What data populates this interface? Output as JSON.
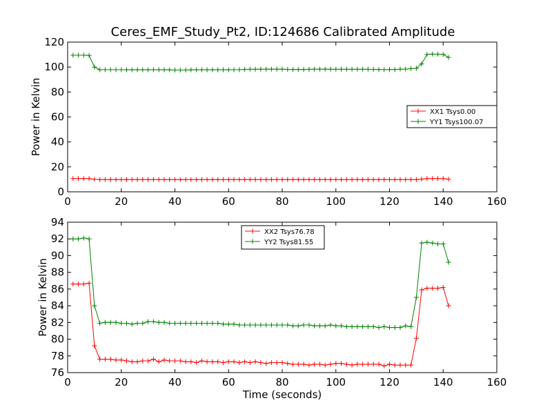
{
  "title": "Ceres_EMF_Study_Pt2, ID:124686 Calibrated Amplitude",
  "chart_data": [
    {
      "type": "line",
      "ylabel": "Power in Kelvin",
      "xlabel": "",
      "xlim": [
        0,
        160
      ],
      "ylim": [
        0,
        120
      ],
      "xticks": [
        "0",
        "20",
        "40",
        "60",
        "80",
        "100",
        "120",
        "140",
        "160"
      ],
      "yticks": [
        "0",
        "20",
        "40",
        "60",
        "80",
        "100",
        "120"
      ],
      "legend_position": "center-right",
      "series": [
        {
          "name": "XX1 Tsys0.00",
          "color": "#ff0000",
          "marker": "plus",
          "x": [
            2,
            4,
            6,
            8,
            10,
            12,
            14,
            16,
            18,
            20,
            22,
            24,
            26,
            28,
            30,
            32,
            34,
            36,
            38,
            40,
            42,
            44,
            46,
            48,
            50,
            52,
            54,
            56,
            58,
            60,
            62,
            64,
            66,
            68,
            70,
            72,
            74,
            76,
            78,
            80,
            82,
            84,
            86,
            88,
            90,
            92,
            94,
            96,
            98,
            100,
            102,
            104,
            106,
            108,
            110,
            112,
            114,
            116,
            118,
            120,
            122,
            124,
            126,
            128,
            130,
            132,
            134,
            136,
            138,
            140,
            142
          ],
          "y": [
            10.7,
            10.7,
            10.7,
            10.7,
            10.0,
            9.8,
            9.8,
            9.8,
            9.8,
            9.8,
            9.8,
            9.8,
            9.8,
            9.8,
            9.8,
            9.8,
            9.8,
            9.8,
            9.8,
            9.8,
            9.8,
            9.8,
            9.8,
            9.8,
            9.8,
            9.8,
            9.8,
            9.8,
            9.8,
            9.8,
            9.8,
            9.8,
            9.8,
            9.8,
            9.8,
            9.8,
            9.8,
            9.8,
            9.8,
            9.8,
            9.8,
            9.8,
            9.8,
            9.8,
            9.8,
            9.8,
            9.8,
            9.8,
            9.8,
            9.8,
            9.8,
            9.8,
            9.8,
            9.8,
            9.8,
            9.8,
            9.8,
            9.8,
            9.8,
            9.8,
            9.8,
            9.8,
            9.8,
            9.8,
            9.8,
            10.2,
            10.7,
            10.7,
            10.7,
            10.7,
            10.1
          ]
        },
        {
          "name": "YY1 Tsys100.07",
          "color": "#008000",
          "marker": "plus",
          "x": [
            2,
            4,
            6,
            8,
            10,
            12,
            14,
            16,
            18,
            20,
            22,
            24,
            26,
            28,
            30,
            32,
            34,
            36,
            38,
            40,
            42,
            44,
            46,
            48,
            50,
            52,
            54,
            56,
            58,
            60,
            62,
            64,
            66,
            68,
            70,
            72,
            74,
            76,
            78,
            80,
            82,
            84,
            86,
            88,
            90,
            92,
            94,
            96,
            98,
            100,
            102,
            104,
            106,
            108,
            110,
            112,
            114,
            116,
            118,
            120,
            122,
            124,
            126,
            128,
            130,
            132,
            134,
            136,
            138,
            140,
            142
          ],
          "y": [
            109.5,
            109.5,
            109.5,
            109.3,
            100.0,
            97.8,
            97.9,
            97.9,
            97.9,
            97.9,
            97.8,
            97.8,
            97.8,
            97.8,
            97.8,
            97.9,
            97.8,
            97.8,
            97.7,
            97.6,
            97.6,
            97.6,
            97.7,
            97.8,
            97.8,
            97.8,
            97.8,
            97.8,
            97.8,
            97.8,
            97.9,
            97.9,
            98.1,
            98.2,
            98.2,
            98.3,
            98.3,
            98.3,
            98.3,
            98.3,
            98.1,
            98.0,
            98.1,
            98.0,
            98.2,
            98.3,
            98.3,
            98.3,
            98.3,
            98.2,
            98.2,
            98.2,
            98.2,
            98.2,
            98.2,
            98.2,
            98.1,
            98.0,
            97.9,
            98.0,
            98.0,
            98.3,
            98.4,
            98.7,
            99.0,
            102.5,
            110.2,
            110.4,
            110.3,
            110.1,
            107.8
          ]
        }
      ]
    },
    {
      "type": "line",
      "ylabel": "Power in Kelvin",
      "xlabel": "Time (seconds)",
      "xlim": [
        0,
        160
      ],
      "ylim": [
        76,
        94
      ],
      "xticks": [
        "0",
        "20",
        "40",
        "60",
        "80",
        "100",
        "120",
        "140",
        "160"
      ],
      "yticks": [
        "76",
        "78",
        "80",
        "82",
        "84",
        "86",
        "88",
        "90",
        "92",
        "94"
      ],
      "legend_position": "top-center",
      "series": [
        {
          "name": "XX2 Tsys76.78",
          "color": "#ff0000",
          "marker": "plus",
          "x": [
            2,
            4,
            6,
            8,
            10,
            12,
            14,
            16,
            18,
            20,
            22,
            24,
            26,
            28,
            30,
            32,
            34,
            36,
            38,
            40,
            42,
            44,
            46,
            48,
            50,
            52,
            54,
            56,
            58,
            60,
            62,
            64,
            66,
            68,
            70,
            72,
            74,
            76,
            78,
            80,
            82,
            84,
            86,
            88,
            90,
            92,
            94,
            96,
            98,
            100,
            102,
            104,
            106,
            108,
            110,
            112,
            114,
            116,
            118,
            120,
            122,
            124,
            126,
            128,
            130,
            132,
            134,
            136,
            138,
            140,
            142
          ],
          "y": [
            86.6,
            86.6,
            86.6,
            86.7,
            79.2,
            77.6,
            77.6,
            77.6,
            77.5,
            77.5,
            77.4,
            77.3,
            77.3,
            77.4,
            77.4,
            77.6,
            77.3,
            77.5,
            77.4,
            77.4,
            77.4,
            77.3,
            77.3,
            77.2,
            77.4,
            77.3,
            77.3,
            77.3,
            77.2,
            77.3,
            77.3,
            77.2,
            77.3,
            77.2,
            77.3,
            77.2,
            77.1,
            77.2,
            77.2,
            77.2,
            77.1,
            77.0,
            77.0,
            77.0,
            76.9,
            77.0,
            77.0,
            76.9,
            77.0,
            77.1,
            77.1,
            77.0,
            76.9,
            77.0,
            77.0,
            77.0,
            77.0,
            77.0,
            76.8,
            77.0,
            76.9,
            76.9,
            76.9,
            76.9,
            80.1,
            85.9,
            86.1,
            86.1,
            86.1,
            86.2,
            84.0
          ]
        },
        {
          "name": "YY2 Tsys81.55",
          "color": "#008000",
          "marker": "plus",
          "x": [
            2,
            4,
            6,
            8,
            10,
            12,
            14,
            16,
            18,
            20,
            22,
            24,
            26,
            28,
            30,
            32,
            34,
            36,
            38,
            40,
            42,
            44,
            46,
            48,
            50,
            52,
            54,
            56,
            58,
            60,
            62,
            64,
            66,
            68,
            70,
            72,
            74,
            76,
            78,
            80,
            82,
            84,
            86,
            88,
            90,
            92,
            94,
            96,
            98,
            100,
            102,
            104,
            106,
            108,
            110,
            112,
            114,
            116,
            118,
            120,
            122,
            124,
            126,
            128,
            130,
            132,
            134,
            136,
            138,
            140,
            142
          ],
          "y": [
            92.0,
            92.0,
            92.1,
            92.0,
            84.0,
            81.9,
            82.0,
            82.0,
            82.0,
            81.9,
            81.9,
            81.8,
            81.9,
            81.9,
            82.1,
            82.1,
            82.0,
            82.0,
            81.9,
            81.9,
            81.9,
            81.9,
            81.9,
            81.9,
            81.9,
            81.9,
            81.9,
            81.9,
            81.8,
            81.8,
            81.8,
            81.7,
            81.7,
            81.7,
            81.7,
            81.7,
            81.7,
            81.7,
            81.7,
            81.7,
            81.7,
            81.6,
            81.6,
            81.7,
            81.7,
            81.6,
            81.6,
            81.6,
            81.7,
            81.6,
            81.6,
            81.5,
            81.5,
            81.5,
            81.5,
            81.5,
            81.5,
            81.4,
            81.5,
            81.4,
            81.4,
            81.4,
            81.6,
            81.5,
            85.0,
            91.5,
            91.6,
            91.5,
            91.4,
            91.4,
            89.2
          ]
        }
      ]
    }
  ]
}
